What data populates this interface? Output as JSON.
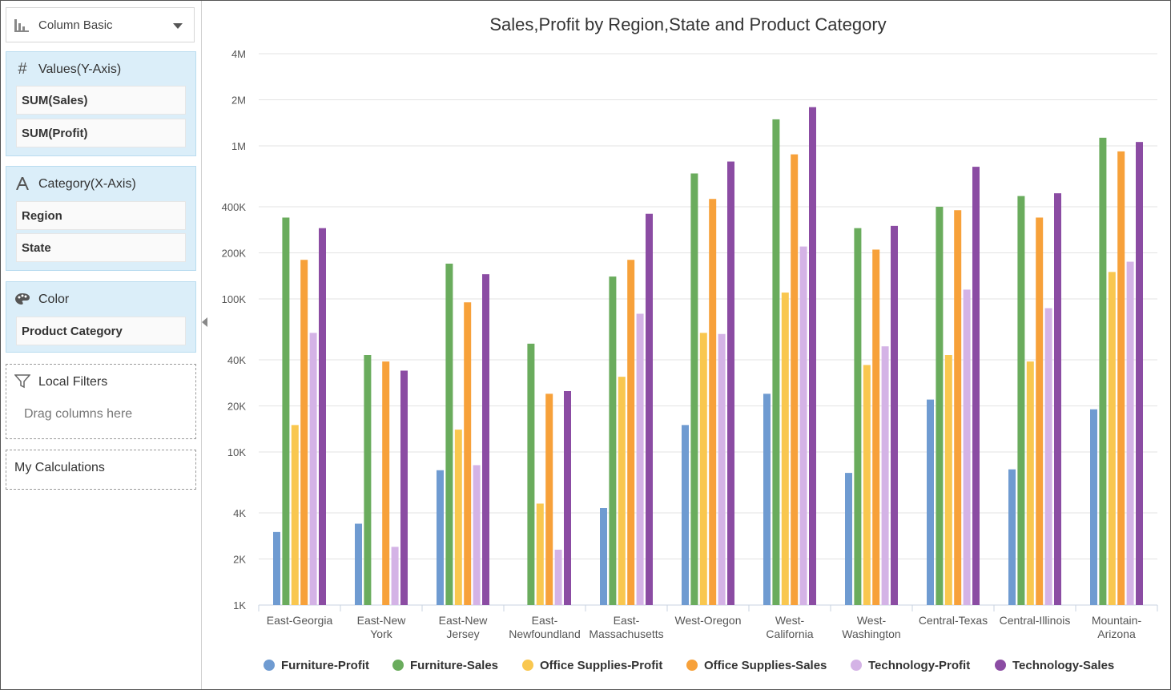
{
  "sidebar": {
    "chart_type": {
      "label": "Column Basic",
      "icon": "bar-chart-icon"
    },
    "values": {
      "title": "Values(Y-Axis)",
      "icon": "hash-icon",
      "items": [
        "SUM(Sales)",
        "SUM(Profit)"
      ]
    },
    "category": {
      "title": "Category(X-Axis)",
      "icon": "letter-a-icon",
      "items": [
        "Region",
        "State"
      ]
    },
    "color": {
      "title": "Color",
      "icon": "palette-icon",
      "items": [
        "Product Category"
      ]
    },
    "local_filters": {
      "title": "Local Filters",
      "icon": "filter-icon",
      "placeholder": "Drag columns here"
    },
    "my_calculations": {
      "title": "My Calculations"
    }
  },
  "chart_data": {
    "type": "bar",
    "title": "Sales,Profit by Region,State and Product Category",
    "y_scale": "log",
    "ylim": [
      1000,
      4000000
    ],
    "y_ticks": [
      {
        "value": 1000,
        "label": "1K"
      },
      {
        "value": 2000,
        "label": "2K"
      },
      {
        "value": 4000,
        "label": "4K"
      },
      {
        "value": 10000,
        "label": "10K"
      },
      {
        "value": 20000,
        "label": "20K"
      },
      {
        "value": 40000,
        "label": "40K"
      },
      {
        "value": 100000,
        "label": "100K"
      },
      {
        "value": 200000,
        "label": "200K"
      },
      {
        "value": 400000,
        "label": "400K"
      },
      {
        "value": 1000000,
        "label": "1M"
      },
      {
        "value": 2000000,
        "label": "2M"
      },
      {
        "value": 4000000,
        "label": "4M"
      }
    ],
    "grid": true,
    "legend_position": "bottom",
    "categories": [
      [
        "East-Georgia"
      ],
      [
        "East-New",
        "York"
      ],
      [
        "East-New",
        "Jersey"
      ],
      [
        "East-",
        "Newfoundland"
      ],
      [
        "East-",
        "Massachusetts"
      ],
      [
        "West-Oregon"
      ],
      [
        "West-",
        "California"
      ],
      [
        "West-",
        "Washington"
      ],
      [
        "Central-Texas"
      ],
      [
        "Central-Illinois"
      ],
      [
        "Mountain-",
        "Arizona"
      ]
    ],
    "series": [
      {
        "name": "Furniture-Profit",
        "color": "#6f9bd1",
        "values": [
          3000,
          3400,
          7600,
          null,
          4300,
          15000,
          24000,
          7300,
          22000,
          7700,
          19000
        ]
      },
      {
        "name": "Furniture-Sales",
        "color": "#6aac5d",
        "values": [
          340000,
          43000,
          170000,
          51000,
          140000,
          660000,
          1490000,
          290000,
          400000,
          470000,
          1130000
        ]
      },
      {
        "name": "Office Supplies-Profit",
        "color": "#f9c74f",
        "values": [
          15000,
          null,
          14000,
          4600,
          31000,
          60000,
          110000,
          37000,
          43000,
          39000,
          150000
        ]
      },
      {
        "name": "Office Supplies-Sales",
        "color": "#f7a13a",
        "values": [
          180000,
          39000,
          95000,
          24000,
          180000,
          450000,
          880000,
          210000,
          380000,
          340000,
          920000
        ]
      },
      {
        "name": "Technology-Profit",
        "color": "#d4b3e6",
        "values": [
          60000,
          2400,
          8200,
          2300,
          80000,
          59000,
          220000,
          49000,
          115000,
          87000,
          175000
        ]
      },
      {
        "name": "Technology-Sales",
        "color": "#8b4ca3",
        "values": [
          290000,
          34000,
          145000,
          25000,
          360000,
          790000,
          1790000,
          300000,
          730000,
          490000,
          1060000
        ]
      }
    ]
  }
}
